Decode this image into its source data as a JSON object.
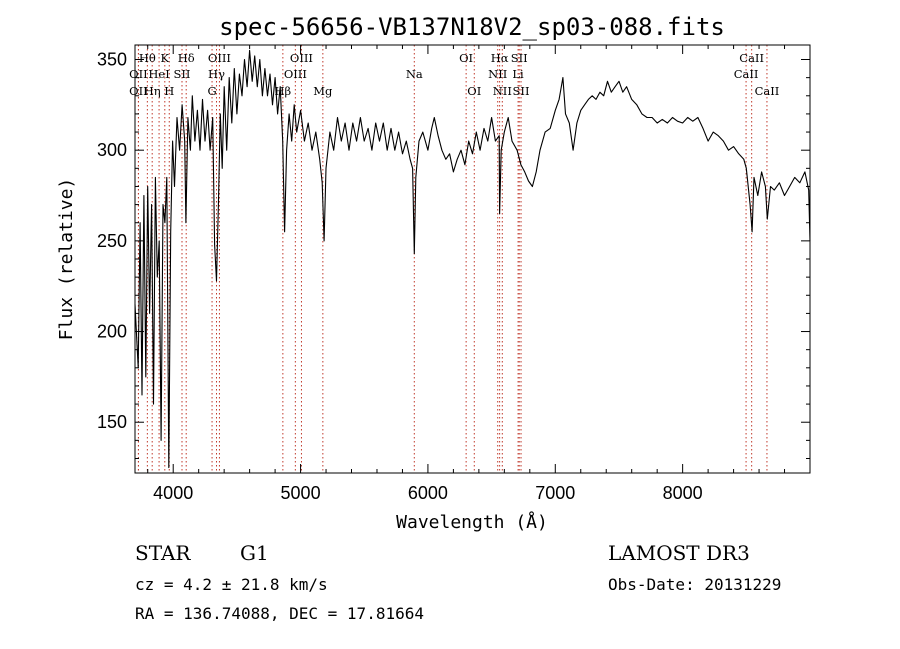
{
  "chart_data": {
    "type": "line",
    "title": "spec-56656-VB137N18V2_sp03-088.fits",
    "xlabel": "Wavelength (Å)",
    "ylabel": "Flux (relative)",
    "xlim": [
      3700,
      9000
    ],
    "ylim": [
      122,
      358
    ],
    "x_ticks": [
      4000,
      5000,
      6000,
      7000,
      8000
    ],
    "y_ticks": [
      150,
      200,
      250,
      300,
      350
    ],
    "series": [
      {
        "name": "spectrum",
        "color": "#000000",
        "points": [
          [
            3700,
            215
          ],
          [
            3725,
            180
          ],
          [
            3740,
            260
          ],
          [
            3755,
            165
          ],
          [
            3770,
            275
          ],
          [
            3785,
            175
          ],
          [
            3800,
            280
          ],
          [
            3815,
            210
          ],
          [
            3830,
            270
          ],
          [
            3845,
            160
          ],
          [
            3860,
            285
          ],
          [
            3875,
            230
          ],
          [
            3890,
            250
          ],
          [
            3905,
            140
          ],
          [
            3920,
            270
          ],
          [
            3935,
            260
          ],
          [
            3950,
            285
          ],
          [
            3965,
            125
          ],
          [
            3980,
            255
          ],
          [
            3995,
            305
          ],
          [
            4010,
            280
          ],
          [
            4030,
            318
          ],
          [
            4050,
            300
          ],
          [
            4070,
            325
          ],
          [
            4090,
            305
          ],
          [
            4100,
            260
          ],
          [
            4115,
            318
          ],
          [
            4135,
            300
          ],
          [
            4150,
            330
          ],
          [
            4170,
            305
          ],
          [
            4190,
            322
          ],
          [
            4210,
            300
          ],
          [
            4230,
            328
          ],
          [
            4250,
            305
          ],
          [
            4270,
            322
          ],
          [
            4290,
            300
          ],
          [
            4310,
            318
          ],
          [
            4325,
            248
          ],
          [
            4340,
            228
          ],
          [
            4355,
            270
          ],
          [
            4370,
            320
          ],
          [
            4385,
            290
          ],
          [
            4400,
            335
          ],
          [
            4420,
            300
          ],
          [
            4440,
            340
          ],
          [
            4460,
            315
          ],
          [
            4480,
            345
          ],
          [
            4500,
            320
          ],
          [
            4520,
            342
          ],
          [
            4540,
            330
          ],
          [
            4560,
            350
          ],
          [
            4580,
            335
          ],
          [
            4600,
            355
          ],
          [
            4620,
            338
          ],
          [
            4640,
            352
          ],
          [
            4660,
            335
          ],
          [
            4680,
            350
          ],
          [
            4700,
            330
          ],
          [
            4720,
            345
          ],
          [
            4740,
            330
          ],
          [
            4760,
            342
          ],
          [
            4780,
            325
          ],
          [
            4800,
            340
          ],
          [
            4820,
            320
          ],
          [
            4840,
            335
          ],
          [
            4860,
            305
          ],
          [
            4875,
            255
          ],
          [
            4890,
            300
          ],
          [
            4910,
            320
          ],
          [
            4930,
            305
          ],
          [
            4950,
            325
          ],
          [
            4970,
            310
          ],
          [
            5000,
            322
          ],
          [
            5030,
            305
          ],
          [
            5060,
            315
          ],
          [
            5090,
            300
          ],
          [
            5120,
            310
          ],
          [
            5150,
            295
          ],
          [
            5170,
            282
          ],
          [
            5185,
            250
          ],
          [
            5200,
            290
          ],
          [
            5230,
            310
          ],
          [
            5260,
            300
          ],
          [
            5290,
            318
          ],
          [
            5320,
            305
          ],
          [
            5350,
            315
          ],
          [
            5380,
            300
          ],
          [
            5410,
            315
          ],
          [
            5440,
            305
          ],
          [
            5470,
            318
          ],
          [
            5500,
            305
          ],
          [
            5530,
            312
          ],
          [
            5560,
            300
          ],
          [
            5590,
            315
          ],
          [
            5620,
            305
          ],
          [
            5650,
            315
          ],
          [
            5680,
            300
          ],
          [
            5710,
            312
          ],
          [
            5740,
            300
          ],
          [
            5770,
            310
          ],
          [
            5800,
            298
          ],
          [
            5830,
            305
          ],
          [
            5860,
            295
          ],
          [
            5880,
            290
          ],
          [
            5893,
            243
          ],
          [
            5905,
            285
          ],
          [
            5930,
            305
          ],
          [
            5960,
            310
          ],
          [
            6000,
            300
          ],
          [
            6030,
            312
          ],
          [
            6050,
            318
          ],
          [
            6080,
            308
          ],
          [
            6110,
            300
          ],
          [
            6140,
            295
          ],
          [
            6170,
            298
          ],
          [
            6200,
            288
          ],
          [
            6230,
            295
          ],
          [
            6260,
            300
          ],
          [
            6290,
            292
          ],
          [
            6320,
            305
          ],
          [
            6350,
            298
          ],
          [
            6380,
            310
          ],
          [
            6410,
            300
          ],
          [
            6440,
            312
          ],
          [
            6470,
            305
          ],
          [
            6500,
            318
          ],
          [
            6530,
            305
          ],
          [
            6560,
            308
          ],
          [
            6563,
            265
          ],
          [
            6575,
            300
          ],
          [
            6600,
            310
          ],
          [
            6630,
            318
          ],
          [
            6660,
            305
          ],
          [
            6700,
            300
          ],
          [
            6730,
            292
          ],
          [
            6760,
            288
          ],
          [
            6790,
            283
          ],
          [
            6820,
            280
          ],
          [
            6850,
            288
          ],
          [
            6880,
            300
          ],
          [
            6920,
            310
          ],
          [
            6960,
            312
          ],
          [
            7000,
            322
          ],
          [
            7030,
            328
          ],
          [
            7060,
            340
          ],
          [
            7080,
            320
          ],
          [
            7110,
            315
          ],
          [
            7140,
            300
          ],
          [
            7170,
            315
          ],
          [
            7200,
            322
          ],
          [
            7230,
            325
          ],
          [
            7260,
            328
          ],
          [
            7290,
            330
          ],
          [
            7320,
            328
          ],
          [
            7350,
            332
          ],
          [
            7380,
            330
          ],
          [
            7410,
            338
          ],
          [
            7440,
            332
          ],
          [
            7470,
            335
          ],
          [
            7500,
            338
          ],
          [
            7530,
            332
          ],
          [
            7560,
            335
          ],
          [
            7600,
            328
          ],
          [
            7640,
            325
          ],
          [
            7680,
            320
          ],
          [
            7720,
            318
          ],
          [
            7760,
            318
          ],
          [
            7800,
            315
          ],
          [
            7840,
            317
          ],
          [
            7880,
            315
          ],
          [
            7920,
            318
          ],
          [
            7960,
            316
          ],
          [
            8000,
            315
          ],
          [
            8040,
            318
          ],
          [
            8080,
            316
          ],
          [
            8120,
            318
          ],
          [
            8160,
            312
          ],
          [
            8200,
            305
          ],
          [
            8240,
            310
          ],
          [
            8280,
            308
          ],
          [
            8320,
            305
          ],
          [
            8360,
            300
          ],
          [
            8400,
            302
          ],
          [
            8440,
            298
          ],
          [
            8480,
            295
          ],
          [
            8500,
            290
          ],
          [
            8530,
            270
          ],
          [
            8545,
            255
          ],
          [
            8560,
            285
          ],
          [
            8590,
            275
          ],
          [
            8620,
            288
          ],
          [
            8650,
            280
          ],
          [
            8665,
            262
          ],
          [
            8690,
            280
          ],
          [
            8720,
            278
          ],
          [
            8760,
            282
          ],
          [
            8800,
            275
          ],
          [
            8840,
            280
          ],
          [
            8880,
            285
          ],
          [
            8920,
            282
          ],
          [
            8960,
            288
          ],
          [
            8990,
            278
          ],
          [
            9000,
            250
          ]
        ]
      }
    ],
    "line_markers": [
      {
        "label": "Hθ",
        "x": 3797,
        "row": 1
      },
      {
        "label": "OII",
        "x": 3727,
        "row": 2
      },
      {
        "label": "OII",
        "x": 3727,
        "row": 3
      },
      {
        "label": "K",
        "x": 3934,
        "row": 1
      },
      {
        "label": "HeI",
        "x": 3889,
        "row": 2
      },
      {
        "label": "Hη",
        "x": 3835,
        "row": 3
      },
      {
        "label": "Hδ",
        "x": 4102,
        "row": 1
      },
      {
        "label": "SII",
        "x": 4069,
        "row": 2
      },
      {
        "label": "H",
        "x": 3969,
        "row": 3
      },
      {
        "label": "OIII",
        "x": 4363,
        "row": 1
      },
      {
        "label": "Hγ",
        "x": 4340,
        "row": 2
      },
      {
        "label": "G",
        "x": 4305,
        "row": 3
      },
      {
        "label": "OIII",
        "x": 5007,
        "row": 1
      },
      {
        "label": "OIII",
        "x": 4959,
        "row": 2
      },
      {
        "label": "Hβ",
        "x": 4861,
        "row": 3
      },
      {
        "label": "Mg",
        "x": 5175,
        "row": 3
      },
      {
        "label": "Na",
        "x": 5893,
        "row": 2
      },
      {
        "label": "OI",
        "x": 6300,
        "row": 1
      },
      {
        "label": "OI",
        "x": 6364,
        "row": 3
      },
      {
        "label": "Hα",
        "x": 6563,
        "row": 1
      },
      {
        "label": "SII",
        "x": 6717,
        "row": 1
      },
      {
        "label": "NII",
        "x": 6548,
        "row": 2
      },
      {
        "label": "Li",
        "x": 6708,
        "row": 2
      },
      {
        "label": "NII",
        "x": 6584,
        "row": 3
      },
      {
        "label": "SII",
        "x": 6731,
        "row": 3
      },
      {
        "label": "CaII",
        "x": 8542,
        "row": 1
      },
      {
        "label": "CaII",
        "x": 8498,
        "row": 2
      },
      {
        "label": "CaII",
        "x": 8662,
        "row": 3
      }
    ],
    "annotations": {
      "class_label": "STAR",
      "subclass_label": "G1",
      "cz_label": "cz = 4.2 ± 21.8 km/s",
      "coords_label": "RA = 136.74088, DEC =  17.81664",
      "survey_label": "LAMOST DR3",
      "obsdate_label": "Obs-Date: 20131229"
    }
  }
}
